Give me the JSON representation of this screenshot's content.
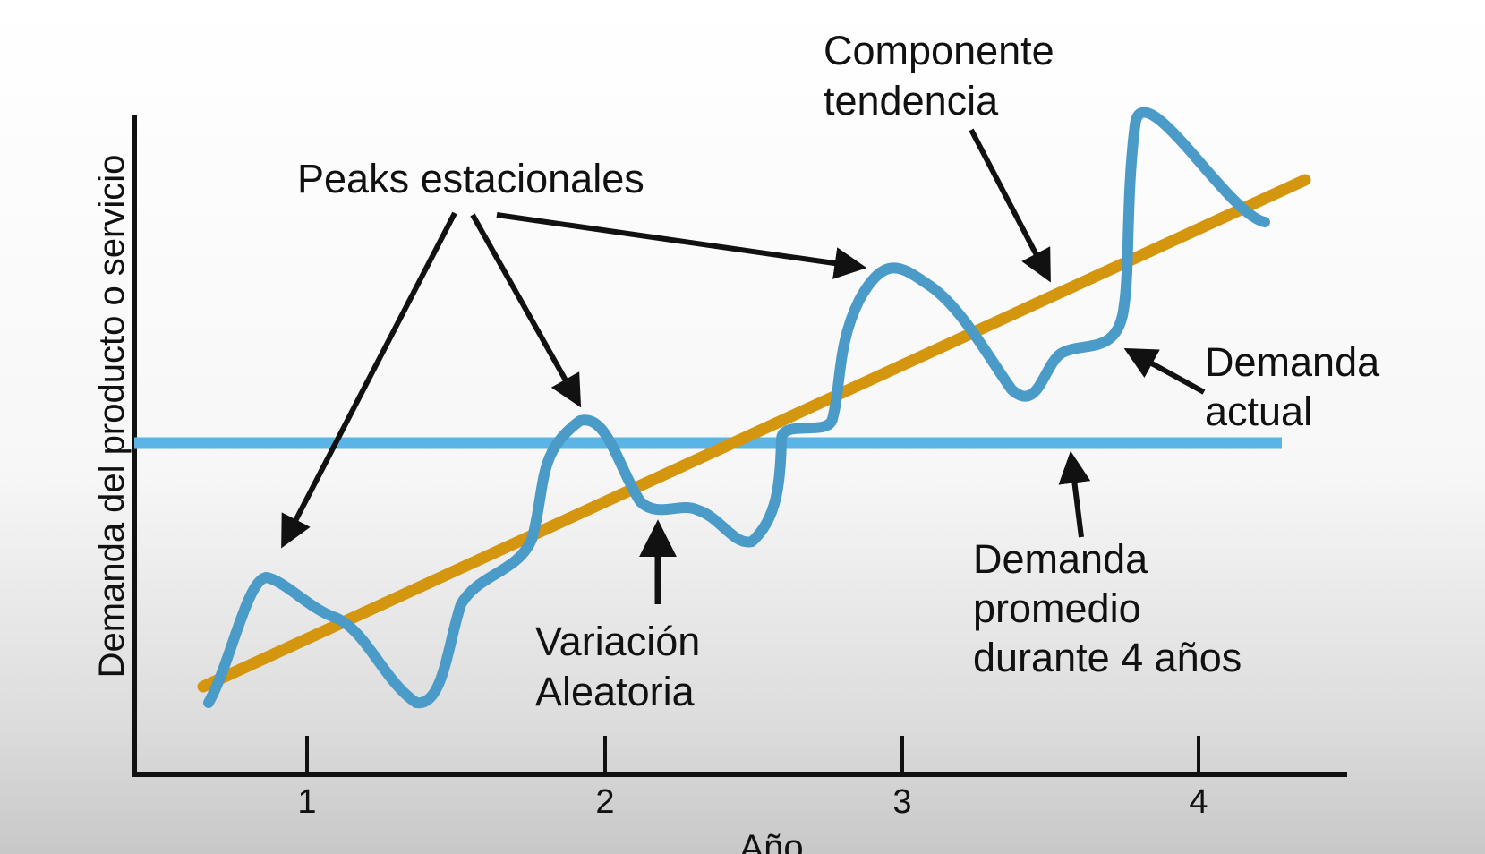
{
  "x_axis": {
    "label": "Año",
    "ticks": [
      "1",
      "2",
      "3",
      "4"
    ]
  },
  "y_axis": {
    "label": "Demanda del producto o servicio"
  },
  "annotations": {
    "peaks": "Peaks estacionales",
    "trend": [
      "Componente",
      "tendencia"
    ],
    "actual": [
      "Demanda",
      "actual"
    ],
    "random": [
      "Variación",
      "Aleatoria"
    ],
    "average": [
      "Demanda",
      "promedio",
      "durante 4 años"
    ]
  },
  "colors": {
    "actual_demand": "#4b9bc9",
    "trend": "#d4960f",
    "average": "#5ab4e6",
    "axis": "#111111"
  }
}
